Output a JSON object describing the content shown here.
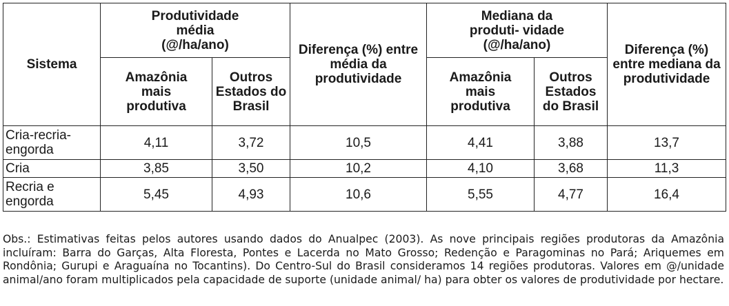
{
  "headers": {
    "sistema": "Sistema",
    "prod_media": "Produtividade média (@/ha/ano)",
    "dif_media": "Diferença (%) entre média da produtividade",
    "mediana": "Mediana da produti- vidade (@/ha/ano)",
    "dif_mediana": "Diferença (%) entre mediana da produtividade",
    "amazonia": "Amazônia mais produtiva",
    "outros": "Outros Estados do Brasil"
  },
  "rows": [
    {
      "sistema": "Cria-recria- engorda",
      "am_media": "4,11",
      "out_media": "3,72",
      "dif_media": "10,5",
      "am_mediana": "4,41",
      "out_mediana": "3,88",
      "dif_mediana": "13,7"
    },
    {
      "sistema": "Cria",
      "am_media": "3,85",
      "out_media": "3,50",
      "dif_media": "10,2",
      "am_mediana": "4,10",
      "out_mediana": "3,68",
      "dif_mediana": "11,3"
    },
    {
      "sistema": "Recria e engorda",
      "am_media": "5,45",
      "out_media": "4,93",
      "dif_media": "10,6",
      "am_mediana": "5,55",
      "out_mediana": "4,77",
      "dif_mediana": "16,4"
    }
  ],
  "note": "Obs.: Estimativas feitas pelos autores usando dados do Anualpec (2003). As nove principais regiões produtoras da Amazônia incluíram: Barra do Garças, Alta Floresta, Pontes e Lacerda no Mato Grosso; Redenção e Paragominas no Pará;  Ariquemes em Rondônia; Gurupi e Araguaína no Tocantins). Do Centro-Sul do Brasil consideramos 14 regiões produtoras. Valores em @/unidade animal/ano foram multiplicados pela capacidade de suporte (unidade animal/ ha) para obter os valores de produtividade por hectare."
}
